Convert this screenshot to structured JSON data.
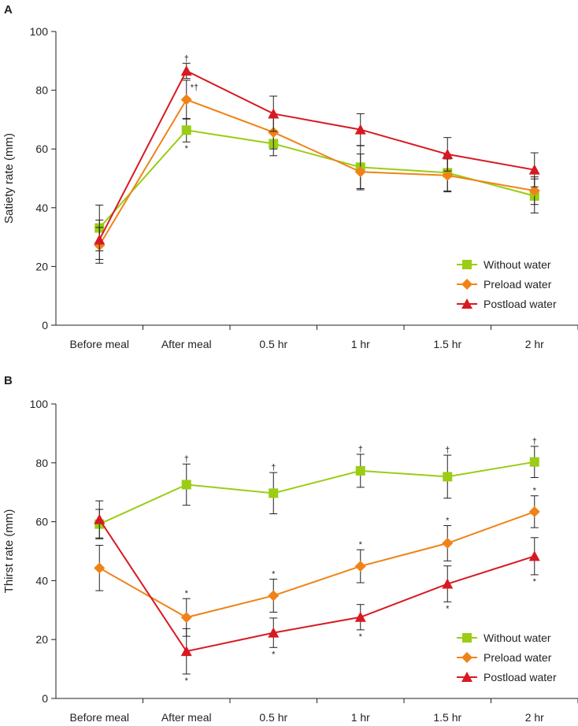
{
  "colors": {
    "without_water": "#9acd14",
    "preload_water": "#ef8318",
    "postload_water": "#d81921",
    "axis": "#231f20"
  },
  "chart_data": [
    {
      "panel_label": "A",
      "type": "line",
      "title": "",
      "xlabel": "",
      "ylabel": "Satiety rate (mm)",
      "ylim": [
        0,
        100
      ],
      "yticks": [
        0,
        20,
        40,
        60,
        80,
        100
      ],
      "grid": false,
      "legend_position": "bottom-right",
      "categories": [
        "Before meal",
        "After meal",
        "0.5 hr",
        "1 hr",
        "1.5 hr",
        "2 hr"
      ],
      "series": [
        {
          "name": "Without water",
          "marker": "square",
          "color_key": "without_water",
          "values": [
            33.1,
            66.4,
            61.8,
            53.8,
            51.9,
            44.0
          ],
          "error": [
            7.8,
            4.0,
            4.1,
            7.3,
            6.2,
            5.8
          ]
        },
        {
          "name": "Preload water",
          "marker": "diamond",
          "color_key": "preload_water",
          "values": [
            27.2,
            76.8,
            65.7,
            52.2,
            51.0,
            45.8
          ],
          "error": [
            6.1,
            6.6,
            5.7,
            6.1,
            5.6,
            4.7
          ]
        },
        {
          "name": "Postload water",
          "marker": "triangle",
          "color_key": "postload_water",
          "values": [
            29.1,
            86.6,
            72.0,
            66.6,
            58.2,
            52.9
          ],
          "error": [
            6.7,
            2.6,
            6.0,
            5.4,
            5.7,
            5.8
          ]
        }
      ],
      "annotations": [
        {
          "category": "After meal",
          "value": 89.0,
          "position": "above",
          "text": "†"
        },
        {
          "category": "After meal",
          "value": 80.5,
          "position": "above-right",
          "text": "*†"
        },
        {
          "category": "After meal",
          "value": 62.5,
          "position": "below",
          "text": "*"
        }
      ]
    },
    {
      "panel_label": "B",
      "type": "line",
      "title": "",
      "xlabel": "",
      "ylabel": "Thirst rate (mm)",
      "ylim": [
        0,
        100
      ],
      "yticks": [
        0,
        20,
        40,
        60,
        80,
        100
      ],
      "grid": false,
      "legend_position": "bottom-right",
      "categories": [
        "Before meal",
        "After meal",
        "0.5 hr",
        "1 hr",
        "1.5 hr",
        "2 hr"
      ],
      "series": [
        {
          "name": "Without water",
          "marker": "square",
          "color_key": "without_water",
          "values": [
            59.2,
            72.6,
            69.7,
            77.3,
            75.3,
            80.3
          ],
          "error": [
            5.0,
            7.0,
            7.0,
            5.6,
            7.3,
            5.3
          ]
        },
        {
          "name": "Preload water",
          "marker": "diamond",
          "color_key": "preload_water",
          "values": [
            44.3,
            27.5,
            34.9,
            44.9,
            52.7,
            63.4
          ],
          "error": [
            7.7,
            6.4,
            5.6,
            5.6,
            6.0,
            5.4
          ]
        },
        {
          "name": "Postload water",
          "marker": "triangle",
          "color_key": "postload_water",
          "values": [
            60.8,
            16.0,
            22.3,
            27.6,
            38.9,
            48.3
          ],
          "error": [
            6.3,
            7.7,
            5.0,
            4.3,
            6.1,
            6.3
          ]
        }
      ],
      "annotations": [
        {
          "category": "After meal",
          "value": 79.6,
          "position": "above",
          "text": "†"
        },
        {
          "category": "0.5 hr",
          "value": 76.7,
          "position": "above",
          "text": "†"
        },
        {
          "category": "1 hr",
          "value": 82.9,
          "position": "above",
          "text": "†"
        },
        {
          "category": "1.5 hr",
          "value": 82.6,
          "position": "above",
          "text": "†"
        },
        {
          "category": "2 hr",
          "value": 85.6,
          "position": "above",
          "text": "†"
        },
        {
          "category": "After meal",
          "value": 33.9,
          "position": "above",
          "text": "*"
        },
        {
          "category": "0.5 hr",
          "value": 40.5,
          "position": "above",
          "text": "*"
        },
        {
          "category": "1 hr",
          "value": 50.5,
          "position": "above",
          "text": "*"
        },
        {
          "category": "1.5 hr",
          "value": 58.7,
          "position": "above",
          "text": "*"
        },
        {
          "category": "2 hr",
          "value": 68.8,
          "position": "above",
          "text": "*"
        },
        {
          "category": "After meal",
          "value": 8.3,
          "position": "below",
          "text": "*"
        },
        {
          "category": "0.5 hr",
          "value": 17.3,
          "position": "below",
          "text": "*"
        },
        {
          "category": "1 hr",
          "value": 23.3,
          "position": "below",
          "text": "*"
        },
        {
          "category": "1.5 hr",
          "value": 32.8,
          "position": "below",
          "text": "*"
        },
        {
          "category": "2 hr",
          "value": 42.0,
          "position": "below",
          "text": "*"
        }
      ]
    }
  ]
}
